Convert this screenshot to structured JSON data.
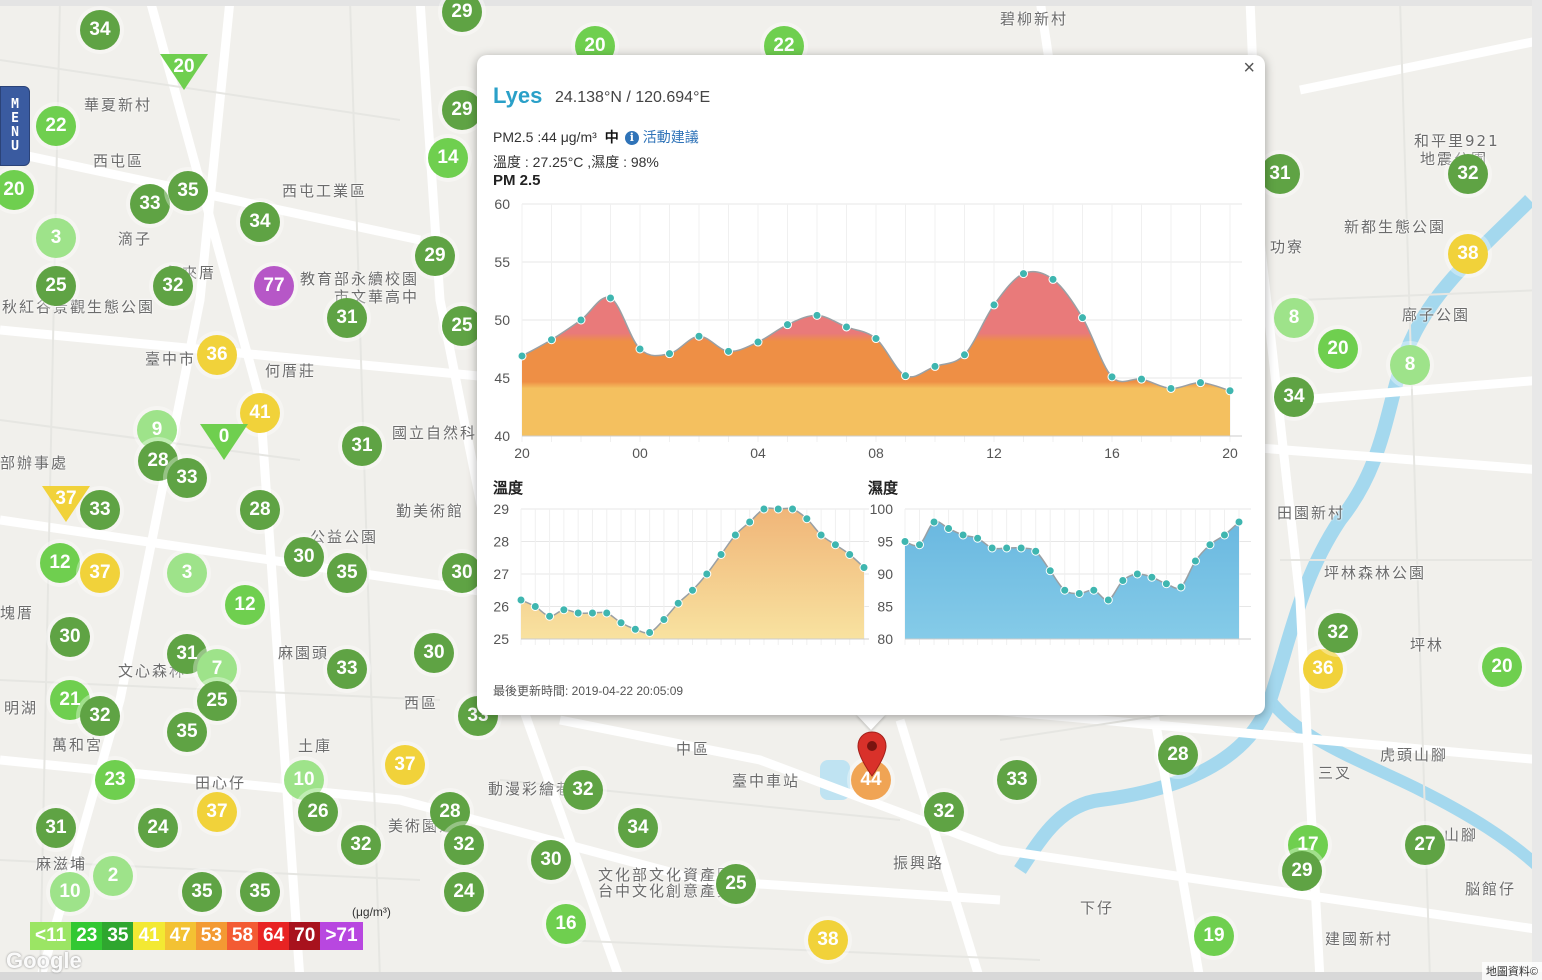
{
  "menu": {
    "label": "MENU"
  },
  "place_labels": [
    {
      "text": "碧柳新村",
      "x": 1000,
      "y": 8
    },
    {
      "text": "華夏新村",
      "x": 84,
      "y": 94
    },
    {
      "text": "西屯區",
      "x": 93,
      "y": 150
    },
    {
      "text": "西屯工業區",
      "x": 282,
      "y": 180
    },
    {
      "text": "滴子",
      "x": 118,
      "y": 228
    },
    {
      "text": "永來厝",
      "x": 165,
      "y": 262
    },
    {
      "text": "教育部永續校園",
      "x": 300,
      "y": 268
    },
    {
      "text": "市文華高中",
      "x": 334,
      "y": 286
    },
    {
      "text": "何厝莊",
      "x": 265,
      "y": 360
    },
    {
      "text": "國立自然科",
      "x": 392,
      "y": 422
    },
    {
      "text": "勤美術館",
      "x": 396,
      "y": 500
    },
    {
      "text": "公益公園",
      "x": 310,
      "y": 526
    },
    {
      "text": "麻園頭",
      "x": 278,
      "y": 642
    },
    {
      "text": "西區",
      "x": 404,
      "y": 692
    },
    {
      "text": "土庫",
      "x": 298,
      "y": 735
    },
    {
      "text": "田心仔",
      "x": 195,
      "y": 772
    },
    {
      "text": "中區",
      "x": 676,
      "y": 738
    },
    {
      "text": "臺中車站",
      "x": 732,
      "y": 770
    },
    {
      "text": "動漫彩繪巷",
      "x": 488,
      "y": 778
    },
    {
      "text": "美術園道",
      "x": 388,
      "y": 815
    },
    {
      "text": "振興路",
      "x": 893,
      "y": 852
    },
    {
      "text": "文化部文化資產園區",
      "x": 598,
      "y": 864
    },
    {
      "text": "台中文化創意產業",
      "x": 598,
      "y": 880
    },
    {
      "text": "麻滋埔",
      "x": 36,
      "y": 853
    },
    {
      "text": "下仔",
      "x": 1080,
      "y": 897
    },
    {
      "text": "建國新村",
      "x": 1325,
      "y": 928
    },
    {
      "text": "虎頭山腳",
      "x": 1380,
      "y": 744
    },
    {
      "text": "三叉",
      "x": 1318,
      "y": 762
    },
    {
      "text": "田園新村",
      "x": 1277,
      "y": 502
    },
    {
      "text": "坪林森林公園",
      "x": 1324,
      "y": 562
    },
    {
      "text": "坪林",
      "x": 1410,
      "y": 634
    },
    {
      "text": "廍子公園",
      "x": 1402,
      "y": 304
    },
    {
      "text": "新都生態公園",
      "x": 1344,
      "y": 216
    },
    {
      "text": "和平里921",
      "x": 1414,
      "y": 130
    },
    {
      "text": "地震公園",
      "x": 1420,
      "y": 148
    },
    {
      "text": "功寮",
      "x": 1270,
      "y": 236
    },
    {
      "text": "脳館仔",
      "x": 1465,
      "y": 878
    },
    {
      "text": "山腳",
      "x": 1444,
      "y": 824
    },
    {
      "text": "萬和宮",
      "x": 52,
      "y": 734
    },
    {
      "text": "文心森林",
      "x": 118,
      "y": 660
    },
    {
      "text": "明湖",
      "x": 4,
      "y": 697
    },
    {
      "text": "塊厝",
      "x": 0,
      "y": 602
    },
    {
      "text": "部辦事處",
      "x": 0,
      "y": 452
    },
    {
      "text": "秋紅谷景觀生態公園",
      "x": 2,
      "y": 296
    },
    {
      "text": "臺中市",
      "x": 145,
      "y": 348
    }
  ],
  "markers": [
    {
      "v": "34",
      "x": 100,
      "y": 30,
      "c": "#5fa344"
    },
    {
      "v": "22",
      "x": 56,
      "y": 126,
      "c": "#6fcf4f"
    },
    {
      "v": "20",
      "x": 14,
      "y": 190,
      "c": "#6fcf4f"
    },
    {
      "v": "33",
      "x": 150,
      "y": 204,
      "c": "#5fa344"
    },
    {
      "v": "35",
      "x": 188,
      "y": 191,
      "c": "#5fa344"
    },
    {
      "v": "34",
      "x": 260,
      "y": 222,
      "c": "#5fa344"
    },
    {
      "v": "3",
      "x": 56,
      "y": 238,
      "c": "#9ee38a"
    },
    {
      "v": "25",
      "x": 56,
      "y": 286,
      "c": "#5fa344"
    },
    {
      "v": "32",
      "x": 173,
      "y": 286,
      "c": "#5fa344"
    },
    {
      "v": "77",
      "x": 274,
      "y": 286,
      "c": "#b657c7"
    },
    {
      "v": "31",
      "x": 347,
      "y": 318,
      "c": "#5fa344"
    },
    {
      "v": "36",
      "x": 217,
      "y": 355,
      "c": "#f1d23a"
    },
    {
      "v": "41",
      "x": 260,
      "y": 413,
      "c": "#f1d23a"
    },
    {
      "v": "9",
      "x": 157,
      "y": 430,
      "c": "#9ee38a"
    },
    {
      "v": "28",
      "x": 158,
      "y": 461,
      "c": "#5fa344"
    },
    {
      "v": "33",
      "x": 187,
      "y": 478,
      "c": "#5fa344"
    },
    {
      "v": "31",
      "x": 362,
      "y": 446,
      "c": "#5fa344"
    },
    {
      "v": "33",
      "x": 100,
      "y": 510,
      "c": "#5fa344"
    },
    {
      "v": "28",
      "x": 260,
      "y": 510,
      "c": "#5fa344"
    },
    {
      "v": "12",
      "x": 60,
      "y": 563,
      "c": "#6fcf4f"
    },
    {
      "v": "37",
      "x": 100,
      "y": 573,
      "c": "#f1d23a"
    },
    {
      "v": "3",
      "x": 187,
      "y": 573,
      "c": "#9ee38a"
    },
    {
      "v": "30",
      "x": 304,
      "y": 557,
      "c": "#5fa344"
    },
    {
      "v": "35",
      "x": 347,
      "y": 573,
      "c": "#5fa344"
    },
    {
      "v": "12",
      "x": 245,
      "y": 605,
      "c": "#6fcf4f"
    },
    {
      "v": "30",
      "x": 70,
      "y": 637,
      "c": "#5fa344"
    },
    {
      "v": "31",
      "x": 187,
      "y": 654,
      "c": "#5fa344"
    },
    {
      "v": "7",
      "x": 217,
      "y": 669,
      "c": "#9ee38a"
    },
    {
      "v": "33",
      "x": 347,
      "y": 669,
      "c": "#5fa344"
    },
    {
      "v": "30",
      "x": 434,
      "y": 653,
      "c": "#5fa344"
    },
    {
      "v": "21",
      "x": 70,
      "y": 700,
      "c": "#6fcf4f"
    },
    {
      "v": "32",
      "x": 100,
      "y": 716,
      "c": "#5fa344"
    },
    {
      "v": "25",
      "x": 217,
      "y": 701,
      "c": "#5fa344"
    },
    {
      "v": "35",
      "x": 187,
      "y": 732,
      "c": "#5fa344"
    },
    {
      "v": "23",
      "x": 115,
      "y": 780,
      "c": "#6fcf4f"
    },
    {
      "v": "10",
      "x": 304,
      "y": 780,
      "c": "#9ee38a"
    },
    {
      "v": "37",
      "x": 405,
      "y": 765,
      "c": "#f1d23a"
    },
    {
      "v": "26",
      "x": 318,
      "y": 812,
      "c": "#5fa344"
    },
    {
      "v": "28",
      "x": 450,
      "y": 812,
      "c": "#5fa344"
    },
    {
      "v": "37",
      "x": 217,
      "y": 812,
      "c": "#f1d23a"
    },
    {
      "v": "24",
      "x": 158,
      "y": 828,
      "c": "#5fa344"
    },
    {
      "v": "31",
      "x": 56,
      "y": 828,
      "c": "#5fa344"
    },
    {
      "v": "32",
      "x": 361,
      "y": 845,
      "c": "#5fa344"
    },
    {
      "v": "32",
      "x": 464,
      "y": 845,
      "c": "#5fa344"
    },
    {
      "v": "2",
      "x": 113,
      "y": 876,
      "c": "#9ee38a"
    },
    {
      "v": "10",
      "x": 70,
      "y": 892,
      "c": "#9ee38a"
    },
    {
      "v": "35",
      "x": 202,
      "y": 892,
      "c": "#5fa344"
    },
    {
      "v": "35",
      "x": 260,
      "y": 892,
      "c": "#5fa344"
    },
    {
      "v": "24",
      "x": 464,
      "y": 892,
      "c": "#5fa344"
    },
    {
      "v": "32",
      "x": 583,
      "y": 790,
      "c": "#5fa344"
    },
    {
      "v": "34",
      "x": 638,
      "y": 828,
      "c": "#5fa344"
    },
    {
      "v": "30",
      "x": 551,
      "y": 860,
      "c": "#5fa344"
    },
    {
      "v": "25",
      "x": 736,
      "y": 884,
      "c": "#5fa344"
    },
    {
      "v": "16",
      "x": 566,
      "y": 924,
      "c": "#6fcf4f"
    },
    {
      "v": "38",
      "x": 828,
      "y": 940,
      "c": "#f1d23a"
    },
    {
      "v": "32",
      "x": 944,
      "y": 812,
      "c": "#5fa344"
    },
    {
      "v": "33",
      "x": 1017,
      "y": 780,
      "c": "#5fa344"
    },
    {
      "v": "28",
      "x": 1178,
      "y": 755,
      "c": "#5fa344"
    },
    {
      "v": "17",
      "x": 1308,
      "y": 845,
      "c": "#6fcf4f"
    },
    {
      "v": "29",
      "x": 1302,
      "y": 871,
      "c": "#5fa344"
    },
    {
      "v": "27",
      "x": 1425,
      "y": 845,
      "c": "#5fa344"
    },
    {
      "v": "19",
      "x": 1214,
      "y": 936,
      "c": "#6fcf4f"
    },
    {
      "v": "36",
      "x": 1323,
      "y": 669,
      "c": "#f1d23a"
    },
    {
      "v": "32",
      "x": 1338,
      "y": 633,
      "c": "#5fa344"
    },
    {
      "v": "20",
      "x": 1502,
      "y": 667,
      "c": "#6fcf4f"
    },
    {
      "v": "34",
      "x": 1294,
      "y": 397,
      "c": "#5fa344"
    },
    {
      "v": "20",
      "x": 1338,
      "y": 349,
      "c": "#6fcf4f"
    },
    {
      "v": "8",
      "x": 1410,
      "y": 365,
      "c": "#9ee38a"
    },
    {
      "v": "8",
      "x": 1294,
      "y": 318,
      "c": "#9ee38a"
    },
    {
      "v": "38",
      "x": 1468,
      "y": 254,
      "c": "#f1d23a"
    },
    {
      "v": "31",
      "x": 1280,
      "y": 174,
      "c": "#5fa344"
    },
    {
      "v": "32",
      "x": 1468,
      "y": 174,
      "c": "#5fa344"
    },
    {
      "v": "20",
      "x": 595,
      "y": 46,
      "c": "#6fcf4f"
    },
    {
      "v": "22",
      "x": 784,
      "y": 46,
      "c": "#6fcf4f"
    },
    {
      "v": "29",
      "x": 462,
      "y": 12,
      "c": "#5fa344"
    },
    {
      "v": "29",
      "x": 435,
      "y": 256,
      "c": "#5fa344"
    },
    {
      "v": "14",
      "x": 448,
      "y": 158,
      "c": "#6fcf4f"
    },
    {
      "v": "29",
      "x": 462,
      "y": 110,
      "c": "#5fa344"
    },
    {
      "v": "25",
      "x": 462,
      "y": 326,
      "c": "#5fa344"
    },
    {
      "v": "30",
      "x": 462,
      "y": 573,
      "c": "#5fa344"
    },
    {
      "v": "33",
      "x": 478,
      "y": 716,
      "c": "#5fa344"
    },
    {
      "v": "44",
      "x": 871,
      "y": 780,
      "c": "#f0a454"
    }
  ],
  "triangles": [
    {
      "v": "20",
      "x": 184,
      "y": 68,
      "c": "#6fcf4f"
    },
    {
      "v": "0",
      "x": 224,
      "y": 438,
      "c": "#6fcf4f"
    },
    {
      "v": "37",
      "x": 66,
      "y": 500,
      "c": "#f1d23a"
    }
  ],
  "legend": {
    "unit": "(μg/m³)",
    "items": [
      {
        "label": "<11",
        "c": "#9be564"
      },
      {
        "label": "23",
        "c": "#32c832"
      },
      {
        "label": "35",
        "c": "#2fa62f"
      },
      {
        "label": "41",
        "c": "#f3e933"
      },
      {
        "label": "47",
        "c": "#f3c233"
      },
      {
        "label": "53",
        "c": "#f39a33"
      },
      {
        "label": "58",
        "c": "#f35b33"
      },
      {
        "label": "64",
        "c": "#e82323"
      },
      {
        "label": "70",
        "c": "#a8121d"
      },
      {
        "label": ">71",
        "c": "#b847e0"
      }
    ]
  },
  "google": {
    "logo": "Google",
    "attribution": "地圖資料©"
  },
  "popup": {
    "close": "×",
    "station": "Lyes",
    "coords": "24.138°N / 120.694°E",
    "pm_text": "PM2.5 :44 μg/m³",
    "pm_level": "中",
    "info_icon": "i",
    "advice": "活動建議",
    "temp_text": "溫度 : 27.25°C ,濕度 : 98%",
    "pm_chart_title": "PM 2.5",
    "temp_chart_title": "溫度",
    "hum_chart_title": "濕度",
    "update_time": "最後更新時間: 2019-04-22 20:05:09"
  },
  "chart_data": [
    {
      "type": "area",
      "title": "PM 2.5",
      "x_ticks": [
        "20",
        "00",
        "04",
        "08",
        "12",
        "16",
        "20"
      ],
      "ylim": [
        40,
        60
      ],
      "y_ticks": [
        40,
        45,
        50,
        55,
        60
      ],
      "values": [
        46.9,
        48.3,
        50.0,
        51.9,
        47.5,
        47.1,
        48.6,
        47.3,
        48.1,
        49.6,
        50.4,
        49.4,
        48.4,
        45.2,
        46.0,
        47.0,
        51.3,
        54.0,
        53.5,
        50.2,
        45.1,
        44.9,
        44.1,
        44.6,
        43.9
      ],
      "colors": {
        "low": "#f4c05f",
        "mid": "#ee8f45",
        "high": "#e97a7a"
      }
    },
    {
      "type": "area",
      "title": "溫度",
      "ylim": [
        25,
        29
      ],
      "y_ticks": [
        25,
        26,
        27,
        28,
        29
      ],
      "values": [
        26.2,
        26.0,
        25.7,
        25.9,
        25.8,
        25.8,
        25.8,
        25.5,
        25.3,
        25.2,
        25.6,
        26.1,
        26.5,
        27.0,
        27.6,
        28.2,
        28.6,
        29.0,
        29.0,
        29.0,
        28.7,
        28.2,
        27.9,
        27.6,
        27.2
      ],
      "colors": {
        "top": "#f0b578",
        "bottom": "#f8e2a0"
      }
    },
    {
      "type": "area",
      "title": "濕度",
      "ylim": [
        80,
        100
      ],
      "y_ticks": [
        80,
        85,
        90,
        95,
        100
      ],
      "values": [
        95.0,
        94.5,
        98.0,
        97.0,
        96.0,
        95.5,
        94.0,
        94.0,
        94.0,
        93.5,
        90.5,
        87.5,
        87.0,
        87.5,
        86.0,
        89.0,
        90.0,
        89.5,
        88.5,
        88.0,
        92.0,
        94.5,
        96.0,
        98.0
      ],
      "colors": {
        "top": "#6ab8e0",
        "bottom": "#85cbe8"
      }
    }
  ]
}
